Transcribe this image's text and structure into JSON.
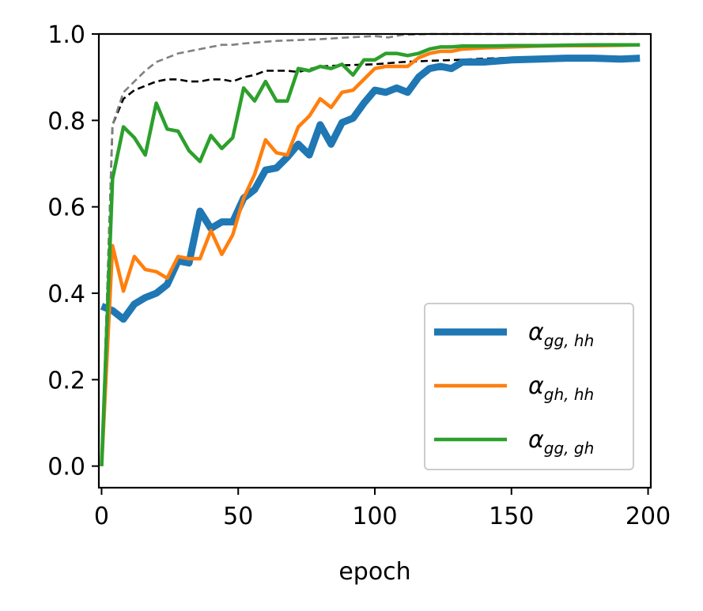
{
  "chart_data": {
    "type": "line",
    "title": "",
    "xlabel": "epoch",
    "ylabel": "",
    "xlim": [
      -1,
      201
    ],
    "ylim": [
      -0.05,
      1.0
    ],
    "xticks": [
      0,
      50,
      100,
      150,
      200
    ],
    "yticks": [
      0.0,
      0.2,
      0.4,
      0.6,
      0.8,
      1.0
    ],
    "xtick_labels": [
      "0",
      "50",
      "100",
      "150",
      "200"
    ],
    "ytick_labels": [
      "0.0",
      "0.2",
      "0.4",
      "0.6",
      "0.8",
      "1.0"
    ],
    "grid": false,
    "legend_position": "lower-right",
    "series": [
      {
        "name": "α_{gg, hh}",
        "symbol": "α",
        "subscript": "gg, hh",
        "color": "#1f77b4",
        "style": "solid",
        "width": "thick",
        "x": [
          0,
          4,
          8,
          12,
          16,
          20,
          24,
          28,
          32,
          36,
          40,
          44,
          48,
          52,
          56,
          60,
          64,
          68,
          72,
          76,
          80,
          84,
          88,
          92,
          96,
          100,
          104,
          108,
          112,
          116,
          120,
          124,
          128,
          132,
          136,
          140,
          150,
          160,
          170,
          180,
          190,
          197
        ],
        "y": [
          0.37,
          0.36,
          0.34,
          0.375,
          0.39,
          0.4,
          0.42,
          0.475,
          0.47,
          0.59,
          0.55,
          0.565,
          0.565,
          0.62,
          0.64,
          0.685,
          0.69,
          0.715,
          0.745,
          0.72,
          0.79,
          0.745,
          0.795,
          0.805,
          0.84,
          0.87,
          0.865,
          0.875,
          0.865,
          0.9,
          0.92,
          0.925,
          0.92,
          0.935,
          0.935,
          0.935,
          0.94,
          0.942,
          0.944,
          0.944,
          0.942,
          0.944
        ]
      },
      {
        "name": "α_{gh, hh}",
        "symbol": "α",
        "subscript": "gh, hh",
        "color": "#ff7f0e",
        "style": "solid",
        "width": "normal",
        "x": [
          0,
          4,
          8,
          12,
          16,
          20,
          24,
          28,
          32,
          36,
          40,
          44,
          48,
          52,
          56,
          60,
          64,
          68,
          72,
          76,
          80,
          84,
          88,
          92,
          96,
          100,
          104,
          108,
          112,
          116,
          120,
          124,
          128,
          132,
          140,
          150,
          160,
          170,
          180,
          190,
          197
        ],
        "y": [
          0.0,
          0.51,
          0.405,
          0.485,
          0.455,
          0.45,
          0.435,
          0.485,
          0.48,
          0.48,
          0.545,
          0.49,
          0.535,
          0.62,
          0.675,
          0.755,
          0.725,
          0.72,
          0.785,
          0.81,
          0.85,
          0.83,
          0.865,
          0.87,
          0.895,
          0.92,
          0.925,
          0.925,
          0.925,
          0.945,
          0.955,
          0.96,
          0.96,
          0.965,
          0.968,
          0.97,
          0.972,
          0.973,
          0.973,
          0.974,
          0.975
        ]
      },
      {
        "name": "α_{gg, gh}",
        "symbol": "α",
        "subscript": "gg, gh",
        "color": "#2ca02c",
        "style": "solid",
        "width": "normal",
        "x": [
          0,
          4,
          8,
          12,
          16,
          20,
          24,
          28,
          32,
          36,
          40,
          44,
          48,
          52,
          56,
          60,
          64,
          68,
          72,
          76,
          80,
          84,
          88,
          92,
          96,
          100,
          104,
          108,
          112,
          116,
          120,
          124,
          128,
          132,
          140,
          150,
          160,
          170,
          180,
          190,
          197
        ],
        "y": [
          0.0,
          0.665,
          0.785,
          0.76,
          0.72,
          0.84,
          0.78,
          0.775,
          0.73,
          0.705,
          0.765,
          0.735,
          0.76,
          0.875,
          0.845,
          0.89,
          0.845,
          0.845,
          0.92,
          0.915,
          0.925,
          0.92,
          0.93,
          0.905,
          0.94,
          0.94,
          0.955,
          0.955,
          0.95,
          0.955,
          0.965,
          0.97,
          0.97,
          0.972,
          0.972,
          0.973,
          0.973,
          0.974,
          0.975,
          0.975,
          0.975
        ]
      },
      {
        "name": "reference-black",
        "color": "#000000",
        "style": "dashed",
        "width": "thin",
        "legend": false,
        "x": [
          0,
          4,
          8,
          12,
          16,
          20,
          24,
          28,
          32,
          36,
          40,
          44,
          48,
          52,
          56,
          60,
          64,
          68,
          72,
          80,
          90,
          100,
          110,
          120,
          130,
          140,
          150,
          160,
          170,
          180,
          190,
          197
        ],
        "y": [
          0.0,
          0.79,
          0.85,
          0.87,
          0.88,
          0.89,
          0.895,
          0.895,
          0.89,
          0.89,
          0.895,
          0.895,
          0.89,
          0.9,
          0.905,
          0.915,
          0.915,
          0.915,
          0.912,
          0.925,
          0.928,
          0.93,
          0.935,
          0.938,
          0.94,
          0.943,
          0.945,
          0.945,
          0.945,
          0.945,
          0.945,
          0.945
        ]
      },
      {
        "name": "reference-gray",
        "color": "#808080",
        "style": "dashed",
        "width": "thin",
        "legend": false,
        "x": [
          0,
          4,
          8,
          12,
          16,
          20,
          24,
          28,
          32,
          36,
          40,
          44,
          48,
          52,
          56,
          60,
          64,
          68,
          72,
          80,
          90,
          100,
          105,
          110,
          120,
          130,
          150,
          170,
          197
        ],
        "y": [
          0.0,
          0.79,
          0.865,
          0.89,
          0.915,
          0.935,
          0.945,
          0.955,
          0.96,
          0.965,
          0.97,
          0.975,
          0.975,
          0.978,
          0.98,
          0.982,
          0.984,
          0.985,
          0.986,
          0.988,
          0.992,
          0.995,
          0.992,
          0.998,
          1.0,
          1.0,
          1.0,
          1.0,
          1.0
        ]
      }
    ]
  }
}
